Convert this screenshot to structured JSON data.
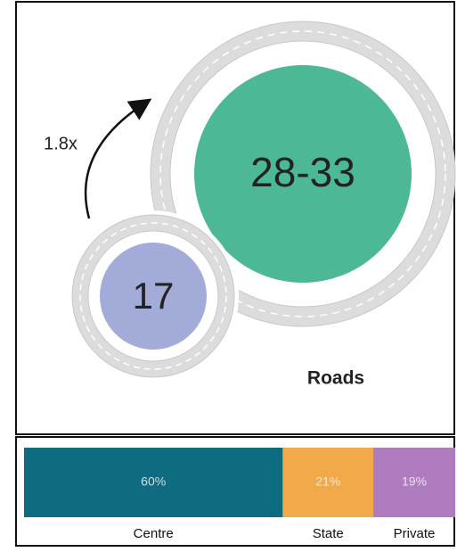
{
  "infographic": {
    "ratio_label": "1.8x",
    "small_circle": {
      "label": "17",
      "color": "#a3acd9"
    },
    "large_circle": {
      "label": "28-33",
      "color": "#4cb896"
    },
    "caption": "Roads",
    "bar": {
      "segments": [
        {
          "name": "Centre",
          "value": 60,
          "value_label": "60%",
          "color": "#0e6b80"
        },
        {
          "name": "State",
          "value": 21,
          "value_label": "21%",
          "color": "#f2a94a"
        },
        {
          "name": "Private",
          "value": 19,
          "value_label": "19%",
          "color": "#b07cc0"
        }
      ]
    }
  }
}
